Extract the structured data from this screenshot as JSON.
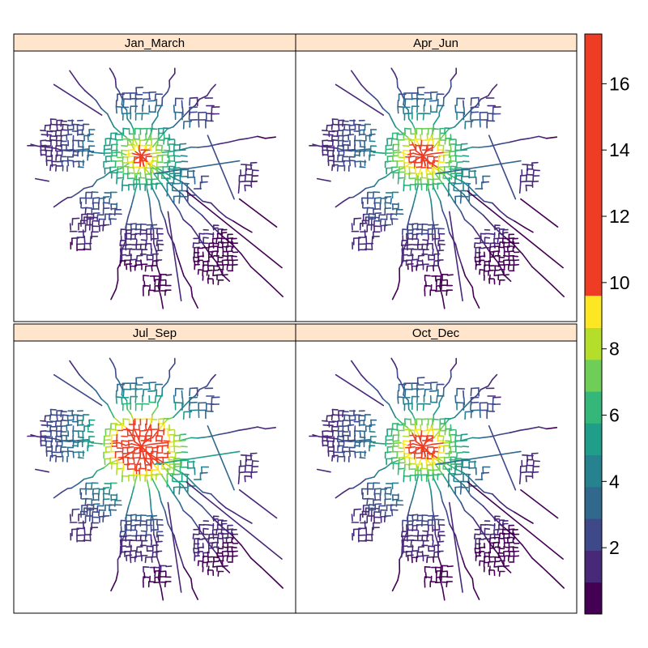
{
  "chart_data": {
    "type": "heatmap",
    "title": "",
    "subtitle": "",
    "layout": "2x2 panel grid with shared colour key on the right",
    "panels": [
      {
        "label": "Jan_March",
        "core_level": 17,
        "core_extent": "small"
      },
      {
        "label": "Apr_Jun",
        "core_level": 17,
        "core_extent": "medium"
      },
      {
        "label": "Jul_Sep",
        "core_level": 17,
        "core_extent": "large"
      },
      {
        "label": "Oct_Dec",
        "core_level": 17,
        "core_extent": "medium"
      }
    ],
    "colorbar": {
      "range": [
        0,
        17.5
      ],
      "ticks": [
        "2",
        "4",
        "6",
        "8",
        "10",
        "12",
        "14",
        "16"
      ],
      "tick_values": [
        2,
        4,
        6,
        8,
        10,
        12,
        14,
        16
      ],
      "break_at": 9.6,
      "above_break_color": "#ef3c24"
    },
    "palette": [
      "#440154",
      "#482878",
      "#3e4989",
      "#31688e",
      "#26828e",
      "#1f9e89",
      "#35b779",
      "#6ece58",
      "#b5de2b",
      "#fde725"
    ],
    "strip_color": "#ffe5cc",
    "grid": false,
    "legend_position": "right"
  }
}
